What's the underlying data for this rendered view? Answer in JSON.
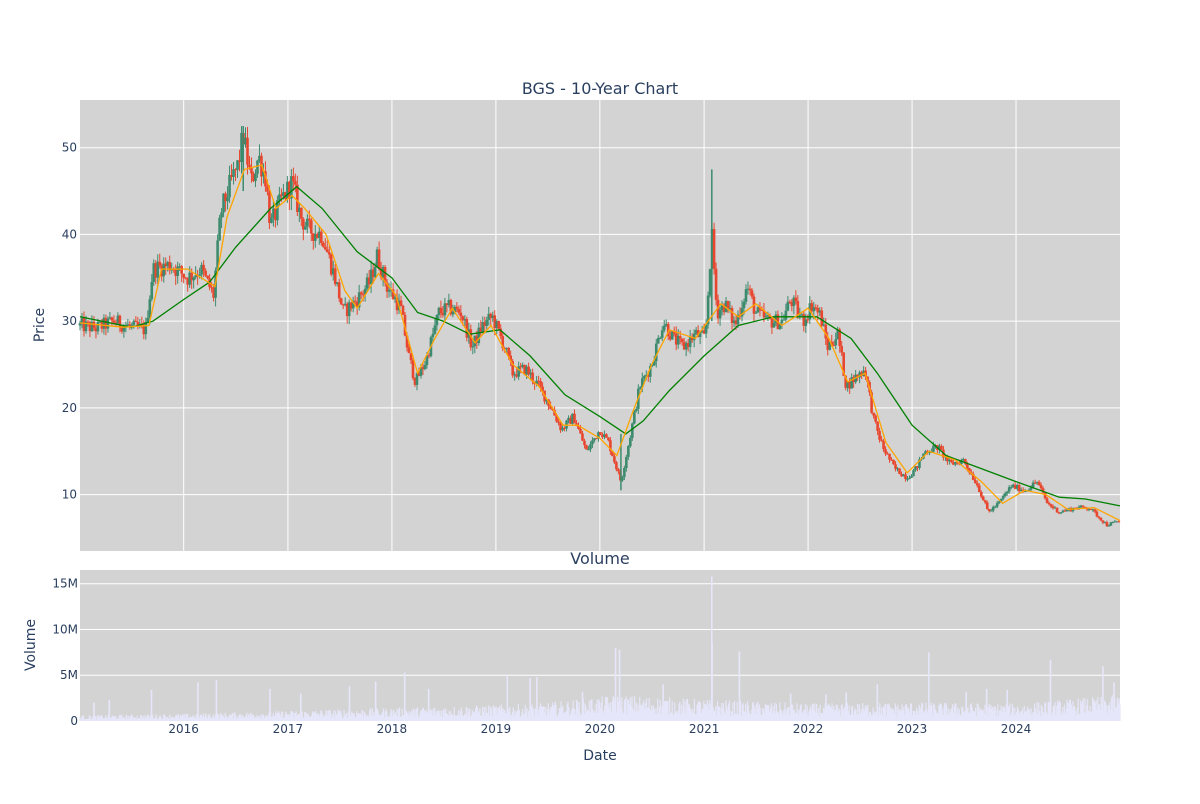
{
  "chart_data": [
    {
      "type": "candlestick",
      "title": "BGS - 10-Year Chart",
      "ylabel": "Price",
      "xlabel": "",
      "x_range": [
        "2015-01-02",
        "2024-12-31"
      ],
      "ylim": [
        3.5,
        55.5
      ],
      "yticks": [
        10,
        20,
        30,
        40,
        50
      ],
      "grid": true,
      "background": "#d3d3d3",
      "gridcolor": "#ffffff",
      "colors": {
        "up": "#3d8b6e",
        "down": "#e8472f",
        "ma_short": "#ffa500",
        "ma_long": "#008000"
      },
      "price_points": [
        {
          "date": "2015-01-02",
          "close": 29.5
        },
        {
          "date": "2015-03-01",
          "close": 29.2
        },
        {
          "date": "2015-05-01",
          "close": 30.0
        },
        {
          "date": "2015-07-01",
          "close": 29.3
        },
        {
          "date": "2015-08-20",
          "close": 29.0
        },
        {
          "date": "2015-09-15",
          "close": 36.0
        },
        {
          "date": "2015-11-15",
          "close": 36.5
        },
        {
          "date": "2016-01-15",
          "close": 35.0
        },
        {
          "date": "2016-03-01",
          "close": 36.0
        },
        {
          "date": "2016-04-15",
          "close": 33.0
        },
        {
          "date": "2016-05-10",
          "close": 42.5
        },
        {
          "date": "2016-06-15",
          "close": 46.0
        },
        {
          "date": "2016-07-10",
          "close": 48.0
        },
        {
          "date": "2016-07-28",
          "close": 51.5
        },
        {
          "date": "2016-08-25",
          "close": 46.0
        },
        {
          "date": "2016-09-20",
          "close": 49.0
        },
        {
          "date": "2016-10-15",
          "close": 46.5
        },
        {
          "date": "2016-11-01",
          "close": 41.0
        },
        {
          "date": "2016-12-10",
          "close": 44.0
        },
        {
          "date": "2017-01-15",
          "close": 46.0
        },
        {
          "date": "2017-02-15",
          "close": 42.0
        },
        {
          "date": "2017-03-15",
          "close": 40.5
        },
        {
          "date": "2017-05-01",
          "close": 40.0
        },
        {
          "date": "2017-06-15",
          "close": 35.0
        },
        {
          "date": "2017-07-15",
          "close": 31.0
        },
        {
          "date": "2017-09-01",
          "close": 32.5
        },
        {
          "date": "2017-10-15",
          "close": 34.5
        },
        {
          "date": "2017-11-10",
          "close": 37.5
        },
        {
          "date": "2017-12-15",
          "close": 34.0
        },
        {
          "date": "2018-02-01",
          "close": 31.5
        },
        {
          "date": "2018-03-01",
          "close": 26.0
        },
        {
          "date": "2018-03-25",
          "close": 23.0
        },
        {
          "date": "2018-05-01",
          "close": 25.5
        },
        {
          "date": "2018-06-15",
          "close": 31.0
        },
        {
          "date": "2018-07-20",
          "close": 31.5
        },
        {
          "date": "2018-09-01",
          "close": 31.0
        },
        {
          "date": "2018-10-10",
          "close": 27.0
        },
        {
          "date": "2018-11-15",
          "close": 29.5
        },
        {
          "date": "2018-12-20",
          "close": 30.5
        },
        {
          "date": "2019-02-01",
          "close": 27.0
        },
        {
          "date": "2019-03-01",
          "close": 24.0
        },
        {
          "date": "2019-04-15",
          "close": 24.5
        },
        {
          "date": "2019-06-01",
          "close": 22.5
        },
        {
          "date": "2019-07-15",
          "close": 20.0
        },
        {
          "date": "2019-08-20",
          "close": 17.5
        },
        {
          "date": "2019-10-01",
          "close": 19.0
        },
        {
          "date": "2019-11-15",
          "close": 15.0
        },
        {
          "date": "2020-01-01",
          "close": 17.5
        },
        {
          "date": "2020-02-01",
          "close": 16.0
        },
        {
          "date": "2020-03-15",
          "close": 11.5
        },
        {
          "date": "2020-04-15",
          "close": 16.5
        },
        {
          "date": "2020-05-20",
          "close": 22.5
        },
        {
          "date": "2020-07-01",
          "close": 25.0
        },
        {
          "date": "2020-08-10",
          "close": 30.0
        },
        {
          "date": "2020-09-15",
          "close": 28.0
        },
        {
          "date": "2020-10-20",
          "close": 27.0
        },
        {
          "date": "2020-12-01",
          "close": 28.5
        },
        {
          "date": "2021-01-05",
          "close": 28.0
        },
        {
          "date": "2021-01-28",
          "close": 40.0
        },
        {
          "date": "2021-02-15",
          "close": 31.0
        },
        {
          "date": "2021-03-15",
          "close": 32.0
        },
        {
          "date": "2021-04-20",
          "close": 29.5
        },
        {
          "date": "2021-06-01",
          "close": 34.0
        },
        {
          "date": "2021-07-01",
          "close": 31.0
        },
        {
          "date": "2021-08-15",
          "close": 30.0
        },
        {
          "date": "2021-10-01",
          "close": 30.0
        },
        {
          "date": "2021-11-01",
          "close": 32.5
        },
        {
          "date": "2021-12-15",
          "close": 30.0
        },
        {
          "date": "2022-01-15",
          "close": 32.0
        },
        {
          "date": "2022-02-15",
          "close": 30.5
        },
        {
          "date": "2022-03-10",
          "close": 27.0
        },
        {
          "date": "2022-04-15",
          "close": 28.5
        },
        {
          "date": "2022-05-15",
          "close": 22.5
        },
        {
          "date": "2022-06-15",
          "close": 23.5
        },
        {
          "date": "2022-07-20",
          "close": 24.5
        },
        {
          "date": "2022-08-20",
          "close": 18.5
        },
        {
          "date": "2022-09-20",
          "close": 15.5
        },
        {
          "date": "2022-11-01",
          "close": 13.0
        },
        {
          "date": "2022-12-15",
          "close": 12.0
        },
        {
          "date": "2023-01-15",
          "close": 13.0
        },
        {
          "date": "2023-02-15",
          "close": 15.0
        },
        {
          "date": "2023-04-01",
          "close": 15.5
        },
        {
          "date": "2023-05-15",
          "close": 13.5
        },
        {
          "date": "2023-07-01",
          "close": 14.0
        },
        {
          "date": "2023-08-20",
          "close": 11.0
        },
        {
          "date": "2023-09-25",
          "close": 8.0
        },
        {
          "date": "2023-11-01",
          "close": 9.0
        },
        {
          "date": "2023-12-15",
          "close": 11.0
        },
        {
          "date": "2024-02-01",
          "close": 10.5
        },
        {
          "date": "2024-03-15",
          "close": 11.5
        },
        {
          "date": "2024-04-20",
          "close": 9.0
        },
        {
          "date": "2024-06-01",
          "close": 8.0
        },
        {
          "date": "2024-08-01",
          "close": 8.5
        },
        {
          "date": "2024-09-15",
          "close": 8.5
        },
        {
          "date": "2024-10-15",
          "close": 7.5
        },
        {
          "date": "2024-11-15",
          "close": 6.5
        },
        {
          "date": "2024-12-31",
          "close": 7.0
        }
      ],
      "ma_short": [
        {
          "date": "2015-01-02",
          "value": 29.8
        },
        {
          "date": "2015-06-01",
          "value": 29.3
        },
        {
          "date": "2015-09-01",
          "value": 29.5
        },
        {
          "date": "2015-10-15",
          "value": 36.0
        },
        {
          "date": "2016-01-15",
          "value": 36.0
        },
        {
          "date": "2016-04-20",
          "value": 34.0
        },
        {
          "date": "2016-06-01",
          "value": 42.0
        },
        {
          "date": "2016-08-01",
          "value": 47.5
        },
        {
          "date": "2016-10-01",
          "value": 48.0
        },
        {
          "date": "2016-11-20",
          "value": 43.0
        },
        {
          "date": "2017-01-15",
          "value": 44.5
        },
        {
          "date": "2017-03-01",
          "value": 43.0
        },
        {
          "date": "2017-05-15",
          "value": 40.0
        },
        {
          "date": "2017-07-20",
          "value": 33.5
        },
        {
          "date": "2017-09-01",
          "value": 31.5
        },
        {
          "date": "2017-11-15",
          "value": 35.5
        },
        {
          "date": "2018-01-15",
          "value": 33.0
        },
        {
          "date": "2018-04-01",
          "value": 24.0
        },
        {
          "date": "2018-06-01",
          "value": 28.0
        },
        {
          "date": "2018-08-01",
          "value": 31.5
        },
        {
          "date": "2018-10-20",
          "value": 27.5
        },
        {
          "date": "2018-12-15",
          "value": 29.5
        },
        {
          "date": "2019-03-01",
          "value": 25.0
        },
        {
          "date": "2019-06-01",
          "value": 22.5
        },
        {
          "date": "2019-08-25",
          "value": 18.0
        },
        {
          "date": "2019-10-15",
          "value": 18.0
        },
        {
          "date": "2020-01-01",
          "value": 16.5
        },
        {
          "date": "2020-03-01",
          "value": 14.5
        },
        {
          "date": "2020-05-01",
          "value": 20.0
        },
        {
          "date": "2020-07-01",
          "value": 25.0
        },
        {
          "date": "2020-09-01",
          "value": 29.0
        },
        {
          "date": "2020-12-01",
          "value": 28.0
        },
        {
          "date": "2021-03-01",
          "value": 32.0
        },
        {
          "date": "2021-05-01",
          "value": 30.5
        },
        {
          "date": "2021-07-01",
          "value": 32.0
        },
        {
          "date": "2021-10-01",
          "value": 29.5
        },
        {
          "date": "2022-01-01",
          "value": 31.5
        },
        {
          "date": "2022-03-15",
          "value": 28.0
        },
        {
          "date": "2022-05-20",
          "value": 23.0
        },
        {
          "date": "2022-07-20",
          "value": 24.0
        },
        {
          "date": "2022-10-01",
          "value": 16.0
        },
        {
          "date": "2022-12-15",
          "value": 12.5
        },
        {
          "date": "2023-03-01",
          "value": 15.0
        },
        {
          "date": "2023-06-01",
          "value": 14.0
        },
        {
          "date": "2023-09-01",
          "value": 11.5
        },
        {
          "date": "2023-11-15",
          "value": 9.0
        },
        {
          "date": "2024-02-01",
          "value": 10.5
        },
        {
          "date": "2024-04-15",
          "value": 10.0
        },
        {
          "date": "2024-07-01",
          "value": 8.3
        },
        {
          "date": "2024-10-01",
          "value": 8.5
        },
        {
          "date": "2024-12-31",
          "value": 7.0
        }
      ],
      "ma_long": [
        {
          "date": "2015-01-02",
          "value": 30.5
        },
        {
          "date": "2015-07-01",
          "value": 29.3
        },
        {
          "date": "2015-09-15",
          "value": 30.0
        },
        {
          "date": "2016-01-01",
          "value": 32.5
        },
        {
          "date": "2016-04-01",
          "value": 34.5
        },
        {
          "date": "2016-07-01",
          "value": 38.5
        },
        {
          "date": "2016-11-01",
          "value": 43.0
        },
        {
          "date": "2017-02-01",
          "value": 45.5
        },
        {
          "date": "2017-05-01",
          "value": 43.0
        },
        {
          "date": "2017-09-01",
          "value": 38.0
        },
        {
          "date": "2018-01-01",
          "value": 35.0
        },
        {
          "date": "2018-04-01",
          "value": 31.0
        },
        {
          "date": "2018-07-01",
          "value": 30.0
        },
        {
          "date": "2018-10-01",
          "value": 28.5
        },
        {
          "date": "2019-01-15",
          "value": 29.0
        },
        {
          "date": "2019-05-01",
          "value": 26.0
        },
        {
          "date": "2019-09-01",
          "value": 21.5
        },
        {
          "date": "2020-01-01",
          "value": 19.0
        },
        {
          "date": "2020-04-01",
          "value": 17.0
        },
        {
          "date": "2020-06-01",
          "value": 18.5
        },
        {
          "date": "2020-09-01",
          "value": 22.0
        },
        {
          "date": "2021-01-01",
          "value": 26.0
        },
        {
          "date": "2021-05-01",
          "value": 29.5
        },
        {
          "date": "2021-09-01",
          "value": 30.5
        },
        {
          "date": "2022-02-01",
          "value": 30.5
        },
        {
          "date": "2022-06-01",
          "value": 28.0
        },
        {
          "date": "2022-09-01",
          "value": 24.0
        },
        {
          "date": "2023-01-01",
          "value": 18.0
        },
        {
          "date": "2023-05-01",
          "value": 14.5
        },
        {
          "date": "2023-09-01",
          "value": 13.0
        },
        {
          "date": "2024-01-01",
          "value": 11.5
        },
        {
          "date": "2024-06-01",
          "value": 9.7
        },
        {
          "date": "2024-09-01",
          "value": 9.5
        },
        {
          "date": "2024-12-31",
          "value": 8.7
        }
      ],
      "spikes": [
        {
          "date": "2021-01-28",
          "high": 47.5,
          "low": 30.0
        },
        {
          "date": "2016-07-28",
          "high": 52.5,
          "low": 45.0
        },
        {
          "date": "2020-03-15",
          "high": 17.0,
          "low": 10.5
        }
      ]
    },
    {
      "type": "bar",
      "title": "Volume",
      "ylabel": "Volume",
      "xlabel": "Date",
      "x_range": [
        "2015-01-02",
        "2024-12-31"
      ],
      "ylim": [
        0,
        16500000
      ],
      "yticks": [
        0,
        5000000,
        10000000,
        15000000
      ],
      "ytick_labels": [
        "0",
        "5M",
        "10M",
        "15M"
      ],
      "xticks": [
        "2016-01-01",
        "2017-01-01",
        "2018-01-01",
        "2019-01-01",
        "2020-01-01",
        "2021-01-01",
        "2022-01-01",
        "2023-01-01",
        "2024-01-01"
      ],
      "xtick_labels": [
        "2016",
        "2017",
        "2018",
        "2019",
        "2020",
        "2021",
        "2022",
        "2023",
        "2024"
      ],
      "bar_color": "#e6e6fa",
      "base_volume": [
        {
          "date": "2015-01-02",
          "value": 400000
        },
        {
          "date": "2016-01-01",
          "value": 500000
        },
        {
          "date": "2017-06-01",
          "value": 800000
        },
        {
          "date": "2018-06-01",
          "value": 1000000
        },
        {
          "date": "2019-06-01",
          "value": 1200000
        },
        {
          "date": "2020-03-01",
          "value": 1800000
        },
        {
          "date": "2021-01-01",
          "value": 1500000
        },
        {
          "date": "2022-01-01",
          "value": 1200000
        },
        {
          "date": "2023-01-01",
          "value": 1300000
        },
        {
          "date": "2024-01-01",
          "value": 1200000
        },
        {
          "date": "2024-12-31",
          "value": 1800000
        }
      ],
      "volume_spikes": [
        {
          "date": "2015-02-20",
          "value": 2000000
        },
        {
          "date": "2015-04-15",
          "value": 2300000
        },
        {
          "date": "2015-09-10",
          "value": 3400000
        },
        {
          "date": "2016-02-20",
          "value": 4200000
        },
        {
          "date": "2016-04-25",
          "value": 4500000
        },
        {
          "date": "2016-10-30",
          "value": 3500000
        },
        {
          "date": "2017-02-15",
          "value": 3000000
        },
        {
          "date": "2017-08-05",
          "value": 3800000
        },
        {
          "date": "2017-11-05",
          "value": 4300000
        },
        {
          "date": "2018-02-15",
          "value": 5300000
        },
        {
          "date": "2018-05-10",
          "value": 3500000
        },
        {
          "date": "2019-02-10",
          "value": 5000000
        },
        {
          "date": "2019-05-01",
          "value": 4700000
        },
        {
          "date": "2019-05-25",
          "value": 4800000
        },
        {
          "date": "2019-11-01",
          "value": 3200000
        },
        {
          "date": "2020-02-25",
          "value": 8000000
        },
        {
          "date": "2020-03-10",
          "value": 7800000
        },
        {
          "date": "2020-08-10",
          "value": 4000000
        },
        {
          "date": "2021-01-28",
          "value": 15800000
        },
        {
          "date": "2021-01-29",
          "value": 8500000
        },
        {
          "date": "2021-05-05",
          "value": 7600000
        },
        {
          "date": "2021-11-01",
          "value": 3000000
        },
        {
          "date": "2022-03-05",
          "value": 2900000
        },
        {
          "date": "2022-05-15",
          "value": 3100000
        },
        {
          "date": "2022-09-01",
          "value": 4000000
        },
        {
          "date": "2023-03-01",
          "value": 7500000
        },
        {
          "date": "2023-07-10",
          "value": 3200000
        },
        {
          "date": "2023-09-20",
          "value": 3500000
        },
        {
          "date": "2023-12-01",
          "value": 3400000
        },
        {
          "date": "2024-05-01",
          "value": 6700000
        },
        {
          "date": "2024-11-01",
          "value": 6000000
        },
        {
          "date": "2024-12-10",
          "value": 4200000
        }
      ]
    }
  ]
}
